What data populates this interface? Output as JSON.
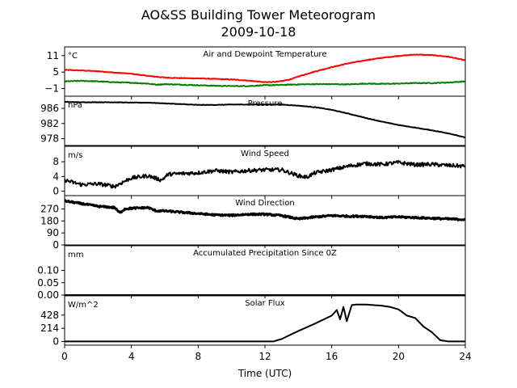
{
  "chart_data": {
    "type": "line",
    "title_line1": "AO&SS Building Tower Meteorogram",
    "title_line2": "2009-10-18",
    "xlabel": "Time (UTC)",
    "xlim": [
      0,
      24
    ],
    "x_ticks": [
      0,
      4,
      8,
      12,
      16,
      20,
      24
    ],
    "x_tick_labels": [
      "0",
      "4",
      "8",
      "12",
      "16",
      "20",
      "24"
    ],
    "grid": false,
    "panels": [
      {
        "id": "temperature",
        "title": "Air and Dewpoint Temperature",
        "unit": "°C",
        "ylim": [
          -3.8,
          14.2
        ],
        "y_ticks": [
          -1,
          5,
          11
        ],
        "y_tick_labels": [
          "−1",
          "5",
          "11"
        ],
        "series": [
          {
            "color": "#ff0000",
            "linewidth": 2,
            "noise": 0.12,
            "x": [
              0,
              1,
              2,
              3,
              4,
              5,
              6,
              7,
              8,
              9,
              10,
              11,
              12,
              12.8,
              13.5,
              14,
              15,
              16,
              17,
              18,
              19,
              20,
              21,
              22,
              23,
              24
            ],
            "y": [
              5.8,
              5.6,
              5.3,
              4.8,
              4.4,
              3.6,
              3.0,
              2.8,
              2.7,
              2.5,
              2.3,
              1.9,
              1.3,
              1.5,
              2.3,
              3.4,
              5.2,
              6.8,
              8.2,
              9.3,
              10.2,
              10.9,
              11.4,
              11.2,
              10.6,
              9.3
            ]
          },
          {
            "color": "#008000",
            "linewidth": 2,
            "noise": 0.15,
            "x": [
              0,
              1,
              2,
              3,
              4,
              5,
              5.5,
              6,
              7,
              8,
              9,
              10,
              11,
              12,
              13,
              14,
              15,
              16,
              17,
              18,
              19,
              20,
              21,
              22,
              23,
              24
            ],
            "y": [
              1.6,
              1.8,
              1.6,
              1.3,
              1.1,
              0.8,
              0.4,
              0.6,
              0.4,
              0.2,
              0.0,
              -0.1,
              -0.1,
              0.2,
              0.3,
              0.5,
              0.6,
              0.6,
              0.5,
              0.8,
              0.7,
              0.8,
              1.0,
              1.0,
              1.2,
              1.6
            ]
          }
        ]
      },
      {
        "id": "pressure",
        "title": "Pressure",
        "unit": "hPa",
        "ylim": [
          976.2,
          989.2
        ],
        "y_ticks": [
          978,
          982,
          986
        ],
        "y_tick_labels": [
          "978",
          "982",
          "986"
        ],
        "series": [
          {
            "color": "#000000",
            "linewidth": 2,
            "noise": 0.06,
            "x": [
              0,
              1,
              2,
              3,
              4,
              5,
              6,
              7,
              8,
              9,
              10,
              11,
              12,
              13,
              14,
              15,
              16,
              17,
              18,
              19,
              20,
              21,
              22,
              23,
              24
            ],
            "y": [
              987.7,
              987.6,
              987.6,
              987.6,
              987.5,
              987.5,
              987.3,
              987.1,
              986.9,
              986.9,
              987.0,
              987.0,
              987.0,
              987.0,
              986.7,
              986.3,
              985.6,
              984.6,
              983.5,
              982.5,
              981.6,
              980.9,
              980.2,
              979.4,
              978.3
            ]
          }
        ]
      },
      {
        "id": "wind-speed",
        "title": "Wind Speed",
        "unit": "m/s",
        "ylim": [
          -1.2,
          12.2
        ],
        "y_ticks": [
          0,
          4,
          8
        ],
        "y_tick_labels": [
          "0",
          "4",
          "8"
        ],
        "series": [
          {
            "color": "#000000",
            "linewidth": 2,
            "noise": 0.5,
            "x": [
              0,
              1,
              2,
              3,
              3.5,
              4,
              5,
              5.8,
              6.2,
              7,
              8,
              9,
              10,
              11,
              12,
              13,
              14,
              14.5,
              15,
              16,
              17,
              18,
              19,
              20,
              21,
              22,
              23,
              24
            ],
            "y": [
              3.0,
              1.8,
              2.0,
              1.3,
              2.5,
              3.6,
              4.2,
              3.0,
              4.6,
              4.8,
              5.0,
              5.6,
              5.2,
              5.6,
              5.8,
              5.8,
              4.2,
              3.8,
              5.0,
              5.8,
              6.8,
              7.5,
              7.3,
              7.8,
              7.2,
              7.3,
              7.0,
              6.8
            ]
          }
        ]
      },
      {
        "id": "wind-direction",
        "title": "Wind Direction",
        "unit": "",
        "ylim": [
          0,
          370
        ],
        "y_ticks": [
          0,
          90,
          180,
          270
        ],
        "y_tick_labels": [
          "0",
          "90",
          "180",
          "270"
        ],
        "series": [
          {
            "color": "#000000",
            "linewidth": 3,
            "noise": 6,
            "x": [
              0,
              1,
              2,
              3,
              3.3,
              3.6,
              4,
              5,
              5.5,
              6,
              7,
              8,
              9,
              10,
              11,
              12,
              13,
              14,
              15,
              16,
              17,
              18,
              19,
              20,
              21,
              22,
              23,
              24
            ],
            "y": [
              330,
              310,
              290,
              280,
              240,
              270,
              275,
              280,
              255,
              255,
              245,
              235,
              225,
              222,
              230,
              230,
              220,
              195,
              210,
              220,
              215,
              215,
              205,
              210,
              205,
              200,
              195,
              190
            ]
          }
        ]
      },
      {
        "id": "precipitation",
        "title": "Accumulated Precipitation Since 0Z",
        "unit": "mm",
        "ylim": [
          0,
          0.2
        ],
        "y_ticks": [
          0.0,
          0.05,
          0.1
        ],
        "y_tick_labels": [
          "0.00",
          "0.05",
          "0.10"
        ],
        "series": [
          {
            "color": "#000000",
            "linewidth": 2,
            "noise": 0,
            "x": [
              0,
              24
            ],
            "y": [
              0,
              0
            ]
          }
        ]
      },
      {
        "id": "solar-flux",
        "title": "Solar Flux",
        "unit": "W/m^2",
        "ylim": [
          -60,
          740
        ],
        "y_ticks": [
          0,
          214,
          428
        ],
        "y_tick_labels": [
          "0",
          "214",
          "428"
        ],
        "series": [
          {
            "color": "#000000",
            "linewidth": 2,
            "noise": 0,
            "x": [
              0,
              12.5,
              13,
              14,
              15,
              16,
              16.3,
              16.5,
              16.7,
              16.9,
              17.2,
              17.5,
              18,
              19,
              19.5,
              20,
              20.5,
              21,
              21.5,
              22,
              22.5,
              23,
              24
            ],
            "y": [
              0,
              0,
              40,
              170,
              290,
              420,
              510,
              360,
              560,
              330,
              590,
              600,
              600,
              580,
              560,
              520,
              420,
              380,
              240,
              150,
              20,
              0,
              0
            ]
          }
        ]
      }
    ]
  }
}
